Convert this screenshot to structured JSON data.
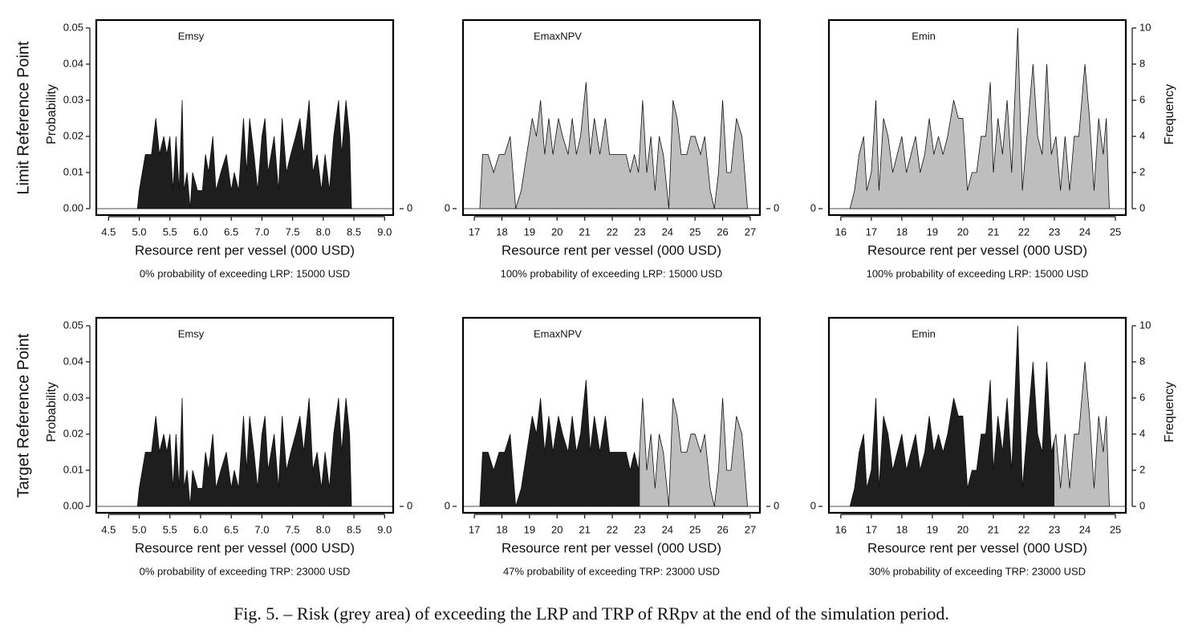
{
  "row_labels": [
    "Limit Reference Point",
    "Target Reference Point"
  ],
  "caption": "Fig. 5. – Risk (grey area) of exceeding the LRP and TRP of RRpv at the end of the simulation period.",
  "chart_data": [
    {
      "type": "area",
      "label": "Emsy",
      "xlabel": "Resource rent per vessel (000 USD)",
      "note": "0% probability of exceeding LRP: 15000 USD",
      "ylabel": "Probability",
      "threshold": 15,
      "below_color": "#1e1e1e",
      "above_color": "#bebebe",
      "xlim": [
        4.3,
        9.14
      ],
      "xticks": [
        4.5,
        {
          "value": 5,
          "label": "5.0"
        },
        5.5,
        {
          "value": 6,
          "label": "6.0"
        },
        6.5,
        {
          "value": 7,
          "label": "7.0"
        },
        7.5,
        {
          "value": 8,
          "label": "8.0"
        },
        8.5,
        {
          "value": 9,
          "label": "9.0"
        }
      ],
      "ylim": [
        0,
        0.0522
      ],
      "yticks": [
        {
          "value": 0,
          "label": "0.00"
        },
        0.01,
        0.02,
        0.03,
        0.04,
        0.05
      ],
      "y2lim": [
        0,
        0.0522
      ],
      "y2ticks": [
        0
      ],
      "x": [
        4.97,
        5.0,
        5.05,
        5.1,
        5.2,
        5.27,
        5.33,
        5.4,
        5.45,
        5.5,
        5.55,
        5.6,
        5.65,
        5.7,
        5.73,
        5.78,
        5.83,
        5.87,
        5.95,
        6.03,
        6.08,
        6.13,
        6.2,
        6.25,
        6.33,
        6.42,
        6.5,
        6.55,
        6.62,
        6.7,
        6.75,
        6.8,
        6.87,
        6.93,
        7.0,
        7.05,
        7.1,
        7.2,
        7.27,
        7.33,
        7.4,
        7.47,
        7.55,
        7.62,
        7.68,
        7.77,
        7.83,
        7.9,
        7.97,
        8.03,
        8.1,
        8.17,
        8.25,
        8.3,
        8.37,
        8.43,
        8.46
      ],
      "series": [
        {
          "values": [
            0,
            0.005,
            0.01,
            0.015,
            0.015,
            0.025,
            0.015,
            0.02,
            0.015,
            0.02,
            0.005,
            0.02,
            0.005,
            0.03,
            0.005,
            0.01,
            0,
            0.01,
            0.005,
            0.005,
            0.015,
            0.01,
            0.02,
            0.005,
            0.01,
            0.015,
            0.005,
            0.01,
            0.005,
            0.025,
            0.01,
            0.025,
            0.015,
            0.005,
            0.02,
            0.025,
            0.01,
            0.02,
            0.005,
            0.025,
            0.01,
            0.015,
            0.02,
            0.025,
            0.015,
            0.03,
            0.01,
            0.015,
            0.005,
            0.015,
            0.005,
            0.02,
            0.03,
            0.015,
            0.03,
            0.02,
            0
          ]
        }
      ]
    },
    {
      "type": "area",
      "label": "EmaxNPV",
      "xlabel": "Resource rent per vessel (000 USD)",
      "note": "100% probability of exceeding LRP: 15000 USD",
      "threshold": 15,
      "below_color": "#1e1e1e",
      "above_color": "#bebebe",
      "xlim": [
        16.59,
        27.35
      ],
      "xticks": [
        17,
        18,
        19,
        20,
        21,
        22,
        23,
        24,
        25,
        26,
        27
      ],
      "ylim": [
        0,
        10.44
      ],
      "yticks": [
        0
      ],
      "y2lim": [
        0,
        10.44
      ],
      "y2ticks": [
        0
      ],
      "x": [
        17.2,
        17.3,
        17.5,
        17.7,
        17.9,
        18.1,
        18.3,
        18.5,
        18.7,
        18.9,
        19.1,
        19.25,
        19.4,
        19.55,
        19.7,
        19.85,
        20.05,
        20.2,
        20.4,
        20.55,
        20.7,
        20.85,
        21.05,
        21.2,
        21.35,
        21.55,
        21.75,
        21.9,
        22.1,
        22.3,
        22.5,
        22.65,
        22.8,
        22.95,
        23.1,
        23.25,
        23.4,
        23.55,
        23.7,
        23.85,
        24.05,
        24.2,
        24.35,
        24.5,
        24.7,
        24.85,
        25.0,
        25.2,
        25.35,
        25.55,
        25.7,
        25.85,
        26.0,
        26.15,
        26.3,
        26.5,
        26.7,
        26.9
      ],
      "series": [
        {
          "values": [
            0,
            3,
            3,
            2,
            3,
            3,
            4,
            0,
            1,
            3,
            5,
            4,
            6,
            3,
            5,
            3,
            5,
            4,
            3,
            5,
            3,
            4,
            7,
            3,
            5,
            3,
            5,
            3,
            3,
            3,
            3,
            2,
            3,
            2,
            6,
            2,
            4,
            1,
            4,
            3,
            0,
            6,
            5,
            3,
            3,
            4,
            4,
            3,
            4,
            1,
            0,
            2,
            6,
            2,
            2,
            5,
            4,
            0
          ]
        }
      ]
    },
    {
      "type": "area",
      "label": "Emin",
      "xlabel": "Resource rent per vessel (000 USD)",
      "note": "100% probability of exceeding LRP: 15000 USD",
      "y2label": "Frequency",
      "threshold": 15,
      "below_color": "#1e1e1e",
      "above_color": "#bebebe",
      "xlim": [
        15.61,
        25.34
      ],
      "xticks": [
        16,
        17,
        18,
        19,
        20,
        21,
        22,
        23,
        24,
        25
      ],
      "ylim": [
        0,
        10.44
      ],
      "yticks": [
        0
      ],
      "y2lim": [
        0,
        10.44
      ],
      "y2ticks": [
        0,
        2,
        4,
        6,
        8,
        10
      ],
      "x": [
        16.3,
        16.45,
        16.6,
        16.75,
        16.85,
        17.0,
        17.15,
        17.25,
        17.4,
        17.55,
        17.7,
        17.85,
        18.0,
        18.15,
        18.3,
        18.45,
        18.6,
        18.75,
        18.9,
        19.05,
        19.2,
        19.35,
        19.5,
        19.7,
        19.85,
        20.0,
        20.15,
        20.3,
        20.45,
        20.6,
        20.75,
        20.9,
        21.0,
        21.15,
        21.3,
        21.45,
        21.6,
        21.8,
        21.95,
        22.1,
        22.3,
        22.45,
        22.6,
        22.75,
        22.9,
        23.05,
        23.2,
        23.35,
        23.5,
        23.65,
        23.8,
        24.0,
        24.15,
        24.3,
        24.45,
        24.6,
        24.7,
        24.8
      ],
      "series": [
        {
          "axis": "y2",
          "values": [
            0,
            1,
            3,
            4,
            1,
            2,
            6,
            1,
            5,
            4,
            2,
            3,
            4,
            2,
            3,
            4,
            2,
            3,
            5,
            3,
            4,
            3,
            4,
            6,
            5,
            5,
            1,
            2,
            2,
            4,
            4,
            7,
            2,
            5,
            3,
            6,
            2,
            10,
            1,
            4,
            8,
            4,
            3,
            8,
            3,
            4,
            1,
            4,
            1,
            4,
            4,
            8,
            5,
            1,
            5,
            3,
            5,
            0
          ]
        }
      ]
    },
    {
      "type": "area",
      "label": "Emsy",
      "xlabel": "Resource rent per vessel (000 USD)",
      "note": "0% probability of exceeding TRP: 23000 USD",
      "ylabel": "Probability",
      "threshold": 23,
      "below_color": "#1e1e1e",
      "above_color": "#bebebe",
      "xlim": [
        4.3,
        9.14
      ],
      "xticks": [
        4.5,
        {
          "value": 5,
          "label": "5.0"
        },
        5.5,
        {
          "value": 6,
          "label": "6.0"
        },
        6.5,
        {
          "value": 7,
          "label": "7.0"
        },
        7.5,
        {
          "value": 8,
          "label": "8.0"
        },
        8.5,
        {
          "value": 9,
          "label": "9.0"
        }
      ],
      "ylim": [
        0,
        0.0522
      ],
      "yticks": [
        {
          "value": 0,
          "label": "0.00"
        },
        0.01,
        0.02,
        0.03,
        0.04,
        0.05
      ],
      "y2lim": [
        0,
        0.0522
      ],
      "y2ticks": [
        0
      ],
      "x": [
        4.97,
        5.0,
        5.05,
        5.1,
        5.2,
        5.27,
        5.33,
        5.4,
        5.45,
        5.5,
        5.55,
        5.6,
        5.65,
        5.7,
        5.73,
        5.78,
        5.83,
        5.87,
        5.95,
        6.03,
        6.08,
        6.13,
        6.2,
        6.25,
        6.33,
        6.42,
        6.5,
        6.55,
        6.62,
        6.7,
        6.75,
        6.8,
        6.87,
        6.93,
        7.0,
        7.05,
        7.1,
        7.2,
        7.27,
        7.33,
        7.4,
        7.47,
        7.55,
        7.62,
        7.68,
        7.77,
        7.83,
        7.9,
        7.97,
        8.03,
        8.1,
        8.17,
        8.25,
        8.3,
        8.37,
        8.43,
        8.46
      ],
      "series": [
        {
          "values": [
            0,
            0.005,
            0.01,
            0.015,
            0.015,
            0.025,
            0.015,
            0.02,
            0.015,
            0.02,
            0.005,
            0.02,
            0.005,
            0.03,
            0.005,
            0.01,
            0,
            0.01,
            0.005,
            0.005,
            0.015,
            0.01,
            0.02,
            0.005,
            0.01,
            0.015,
            0.005,
            0.01,
            0.005,
            0.025,
            0.01,
            0.025,
            0.015,
            0.005,
            0.02,
            0.025,
            0.01,
            0.02,
            0.005,
            0.025,
            0.01,
            0.015,
            0.02,
            0.025,
            0.015,
            0.03,
            0.01,
            0.015,
            0.005,
            0.015,
            0.005,
            0.02,
            0.03,
            0.015,
            0.03,
            0.02,
            0
          ]
        }
      ]
    },
    {
      "type": "area",
      "label": "EmaxNPV",
      "xlabel": "Resource rent per vessel (000 USD)",
      "note": "47% probability of exceeding TRP: 23000 USD",
      "threshold": 23,
      "below_color": "#1e1e1e",
      "above_color": "#bebebe",
      "xlim": [
        16.59,
        27.35
      ],
      "xticks": [
        17,
        18,
        19,
        20,
        21,
        22,
        23,
        24,
        25,
        26,
        27
      ],
      "ylim": [
        0,
        10.44
      ],
      "yticks": [
        0
      ],
      "y2lim": [
        0,
        10.44
      ],
      "y2ticks": [
        0
      ],
      "x": [
        17.2,
        17.3,
        17.5,
        17.7,
        17.9,
        18.1,
        18.3,
        18.5,
        18.7,
        18.9,
        19.1,
        19.25,
        19.4,
        19.55,
        19.7,
        19.85,
        20.05,
        20.2,
        20.4,
        20.55,
        20.7,
        20.85,
        21.05,
        21.2,
        21.35,
        21.55,
        21.75,
        21.9,
        22.1,
        22.3,
        22.5,
        22.65,
        22.8,
        22.95,
        23.1,
        23.25,
        23.4,
        23.55,
        23.7,
        23.85,
        24.05,
        24.2,
        24.35,
        24.5,
        24.7,
        24.85,
        25.0,
        25.2,
        25.35,
        25.55,
        25.7,
        25.85,
        26.0,
        26.15,
        26.3,
        26.5,
        26.7,
        26.9
      ],
      "series": [
        {
          "values": [
            0,
            3,
            3,
            2,
            3,
            3,
            4,
            0,
            1,
            3,
            5,
            4,
            6,
            3,
            5,
            3,
            5,
            4,
            3,
            5,
            3,
            4,
            7,
            3,
            5,
            3,
            5,
            3,
            3,
            3,
            3,
            2,
            3,
            2,
            6,
            2,
            4,
            1,
            4,
            3,
            0,
            6,
            5,
            3,
            3,
            4,
            4,
            3,
            4,
            1,
            0,
            2,
            6,
            2,
            2,
            5,
            4,
            0
          ]
        }
      ]
    },
    {
      "type": "area",
      "label": "Emin",
      "xlabel": "Resource rent per vessel (000 USD)",
      "note": "30% probability of exceeding TRP: 23000 USD",
      "y2label": "Frequency",
      "threshold": 23,
      "below_color": "#1e1e1e",
      "above_color": "#bebebe",
      "xlim": [
        15.61,
        25.34
      ],
      "xticks": [
        16,
        17,
        18,
        19,
        20,
        21,
        22,
        23,
        24,
        25
      ],
      "ylim": [
        0,
        10.44
      ],
      "yticks": [
        0
      ],
      "y2lim": [
        0,
        10.44
      ],
      "y2ticks": [
        0,
        2,
        4,
        6,
        8,
        10
      ],
      "x": [
        16.3,
        16.45,
        16.6,
        16.75,
        16.85,
        17.0,
        17.15,
        17.25,
        17.4,
        17.55,
        17.7,
        17.85,
        18.0,
        18.15,
        18.3,
        18.45,
        18.6,
        18.75,
        18.9,
        19.05,
        19.2,
        19.35,
        19.5,
        19.7,
        19.85,
        20.0,
        20.15,
        20.3,
        20.45,
        20.6,
        20.75,
        20.9,
        21.0,
        21.15,
        21.3,
        21.45,
        21.6,
        21.8,
        21.95,
        22.1,
        22.3,
        22.45,
        22.6,
        22.75,
        22.9,
        23.05,
        23.2,
        23.35,
        23.5,
        23.65,
        23.8,
        24.0,
        24.15,
        24.3,
        24.45,
        24.6,
        24.7,
        24.8
      ],
      "series": [
        {
          "axis": "y2",
          "values": [
            0,
            1,
            3,
            4,
            1,
            2,
            6,
            1,
            5,
            4,
            2,
            3,
            4,
            2,
            3,
            4,
            2,
            3,
            5,
            3,
            4,
            3,
            4,
            6,
            5,
            5,
            1,
            2,
            2,
            4,
            4,
            7,
            2,
            5,
            3,
            6,
            2,
            10,
            1,
            4,
            8,
            4,
            3,
            8,
            3,
            4,
            1,
            4,
            1,
            4,
            4,
            8,
            5,
            1,
            5,
            3,
            5,
            0
          ]
        }
      ]
    }
  ]
}
